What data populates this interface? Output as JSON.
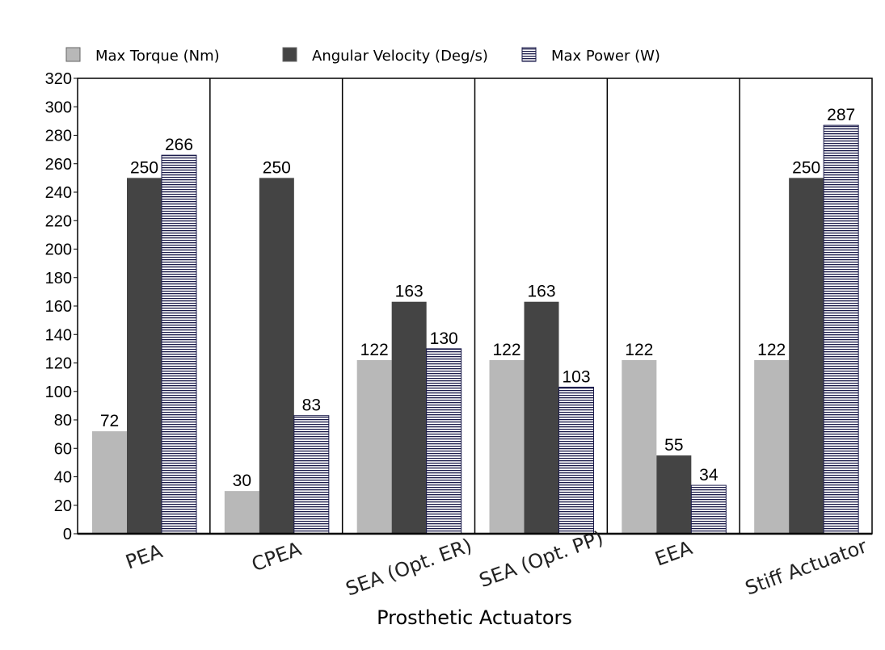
{
  "chart_data": {
    "type": "bar",
    "title": "",
    "xlabel": "Prosthetic Actuators",
    "ylabel": "",
    "ylim": [
      0,
      320
    ],
    "ytick_step": 20,
    "grid": false,
    "legend_position": "top",
    "categories": [
      "PEA",
      "CPEA",
      "SEA (Opt. ER)",
      "SEA (Opt. PP)",
      "EEA",
      "Stiff Actuator"
    ],
    "series": [
      {
        "name": "Max Torque (Nm)",
        "color": "#b8b8b8",
        "pattern": "solid",
        "values": [
          72,
          30,
          122,
          122,
          122,
          122
        ]
      },
      {
        "name": "Angular Velocity (Deg/s)",
        "color": "#444444",
        "pattern": "solid",
        "values": [
          250,
          250,
          163,
          163,
          55,
          250
        ]
      },
      {
        "name": "Max Power (W)",
        "color": "#ffffff",
        "pattern": "horizontal-lines",
        "line_color": "#1a1a4a",
        "values": [
          266,
          83,
          130,
          103,
          34,
          287
        ]
      }
    ]
  }
}
